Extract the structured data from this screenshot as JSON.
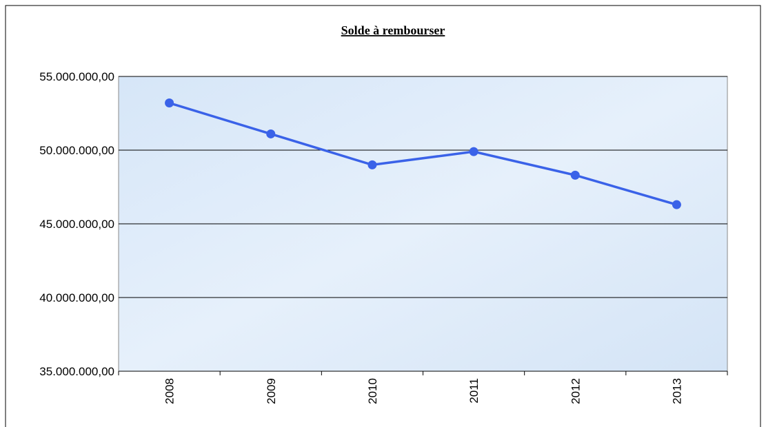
{
  "chart_data": {
    "type": "line",
    "title": "Solde à rembourser",
    "categories": [
      "2008",
      "2009",
      "2010",
      "2011",
      "2012",
      "2013"
    ],
    "series": [
      {
        "name": "Solde à rembourser",
        "color": "#3a62e8",
        "values": [
          53200000,
          51100000,
          49000000,
          49900000,
          48300000,
          46300000
        ]
      }
    ],
    "ylim": [
      35000000,
      55000000
    ],
    "yticks": [
      {
        "value": 35000000,
        "label": "35.000.000,00"
      },
      {
        "value": 40000000,
        "label": "40.000.000,00"
      },
      {
        "value": 45000000,
        "label": "45.000.000,00"
      },
      {
        "value": 50000000,
        "label": "50.000.000,00"
      },
      {
        "value": 55000000,
        "label": "55.000.000,00"
      }
    ],
    "grid": true,
    "legend": false
  }
}
